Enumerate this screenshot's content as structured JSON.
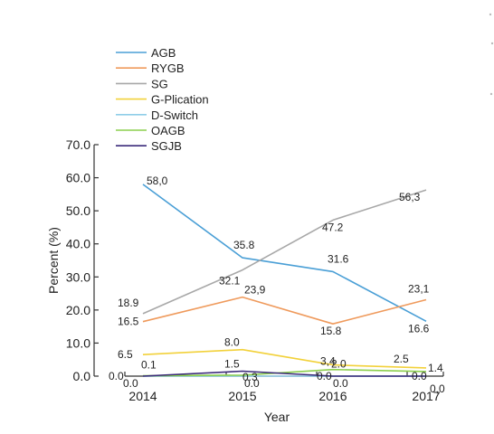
{
  "chart_data": {
    "type": "line",
    "xlabel": "Year",
    "ylabel": "Percent (%)",
    "ylim": [
      0,
      70
    ],
    "yticks": [
      "0.0",
      "10.0",
      "20.0",
      "30.0",
      "40.0",
      "50.0",
      "60.0",
      "70.0"
    ],
    "categories": [
      "2014",
      "2015",
      "2016",
      "2017"
    ],
    "legend_position": "top-left",
    "series": [
      {
        "name": "AGB",
        "color": "#4a9fd6",
        "values": [
          58.0,
          35.8,
          31.6,
          16.6
        ],
        "labels": [
          "58,0",
          "35.8",
          "31.6",
          "16.6"
        ]
      },
      {
        "name": "RYGB",
        "color": "#ef9a5c",
        "values": [
          16.5,
          23.9,
          15.8,
          23.1
        ],
        "labels": [
          "16.5",
          "23,9",
          "15.8",
          "23,1"
        ]
      },
      {
        "name": "SG",
        "color": "#a8a8a8",
        "values": [
          18.9,
          32.1,
          47.2,
          56.3
        ],
        "labels": [
          "18.9",
          "32.1",
          "47.2",
          "56,3"
        ]
      },
      {
        "name": "G-Plication",
        "color": "#f2d13a",
        "values": [
          6.5,
          8.0,
          3.4,
          2.5
        ],
        "labels": [
          "6.5",
          "8.0",
          "3,4",
          "2.5"
        ]
      },
      {
        "name": "D-Switch",
        "color": "#8fcde8",
        "values": [
          0.0,
          0.0,
          0.0,
          0.0
        ],
        "labels": [
          "0.0",
          "0.0",
          "0.0",
          "0,0"
        ]
      },
      {
        "name": "OAGB",
        "color": "#8ccf4d",
        "values": [
          0.1,
          0.3,
          2.0,
          1.4
        ],
        "labels": [
          "0.1",
          "0.3",
          "2.0",
          "1.4"
        ]
      },
      {
        "name": "SGJB",
        "color": "#3b2a7a",
        "values": [
          0.0,
          1.5,
          0.0,
          0.0
        ],
        "labels": [
          "0.0",
          "1.5",
          "0.0",
          "0.0"
        ]
      }
    ]
  }
}
